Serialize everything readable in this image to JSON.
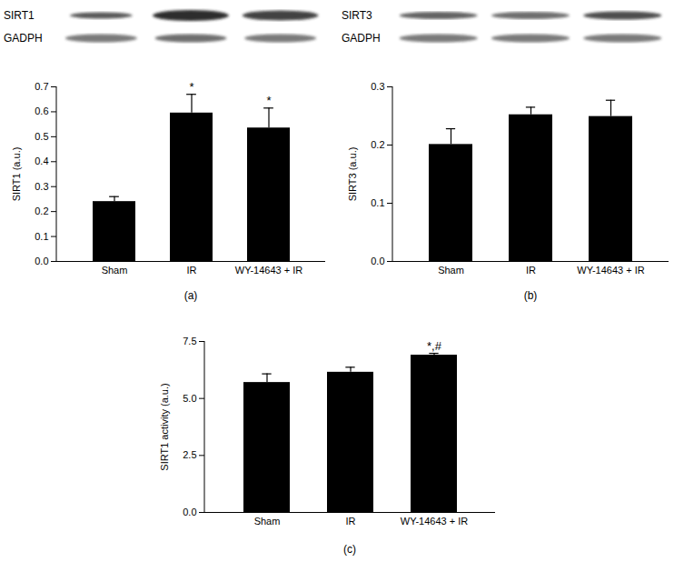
{
  "chart_data": [
    {
      "type": "bar",
      "caption": "(a)",
      "blot_labels": [
        "SIRT1",
        "GADPH"
      ],
      "categories": [
        "Sham",
        "IR",
        "WY-14643 + IR"
      ],
      "values": [
        0.24,
        0.595,
        0.535
      ],
      "errors": [
        0.02,
        0.075,
        0.08
      ],
      "annotations": [
        null,
        "*",
        "*"
      ],
      "color": "#000000",
      "y_label": "SIRT1 (a.u.)",
      "ylim": [
        0,
        0.7
      ],
      "yticks": [
        {
          "value": 0,
          "label": "0.0"
        },
        {
          "value": 0.1,
          "label": "0.1"
        },
        {
          "value": 0.2,
          "label": "0.2"
        },
        {
          "value": 0.3,
          "label": "0.3"
        },
        {
          "value": 0.4,
          "label": "0.4"
        },
        {
          "value": 0.5,
          "label": "0.5"
        },
        {
          "value": 0.6,
          "label": "0.6"
        },
        {
          "value": 0.7,
          "label": "0.7"
        }
      ]
    },
    {
      "type": "bar",
      "caption": "(b)",
      "blot_labels": [
        "SIRT3",
        "GADPH"
      ],
      "categories": [
        "Sham",
        "IR",
        "WY-14643 + IR"
      ],
      "values": [
        0.201,
        0.252,
        0.249
      ],
      "errors": [
        0.027,
        0.013,
        0.028
      ],
      "annotations": [
        null,
        null,
        null
      ],
      "color": "#000000",
      "y_label": "SIRT3 (a.u.)",
      "ylim": [
        0,
        0.3
      ],
      "yticks": [
        {
          "value": 0,
          "label": "0.0"
        },
        {
          "value": 0.1,
          "label": "0.1"
        },
        {
          "value": 0.2,
          "label": "0.2"
        },
        {
          "value": 0.3,
          "label": "0.3"
        }
      ]
    },
    {
      "type": "bar",
      "caption": "(c)",
      "categories": [
        "Sham",
        "IR",
        "WY-14643 + IR"
      ],
      "values": [
        5.7,
        6.15,
        6.9
      ],
      "errors": [
        0.38,
        0.22,
        0.08
      ],
      "annotations": [
        null,
        null,
        "*,#"
      ],
      "color": "#000000",
      "y_label": "SIRT1 activity (a.u.)",
      "ylim": [
        0,
        7.5
      ],
      "yticks": [
        {
          "value": 0,
          "label": "0.0"
        },
        {
          "value": 2.5,
          "label": "2.5"
        },
        {
          "value": 5,
          "label": "5.0"
        },
        {
          "value": 7.5,
          "label": "7.5"
        }
      ]
    }
  ]
}
